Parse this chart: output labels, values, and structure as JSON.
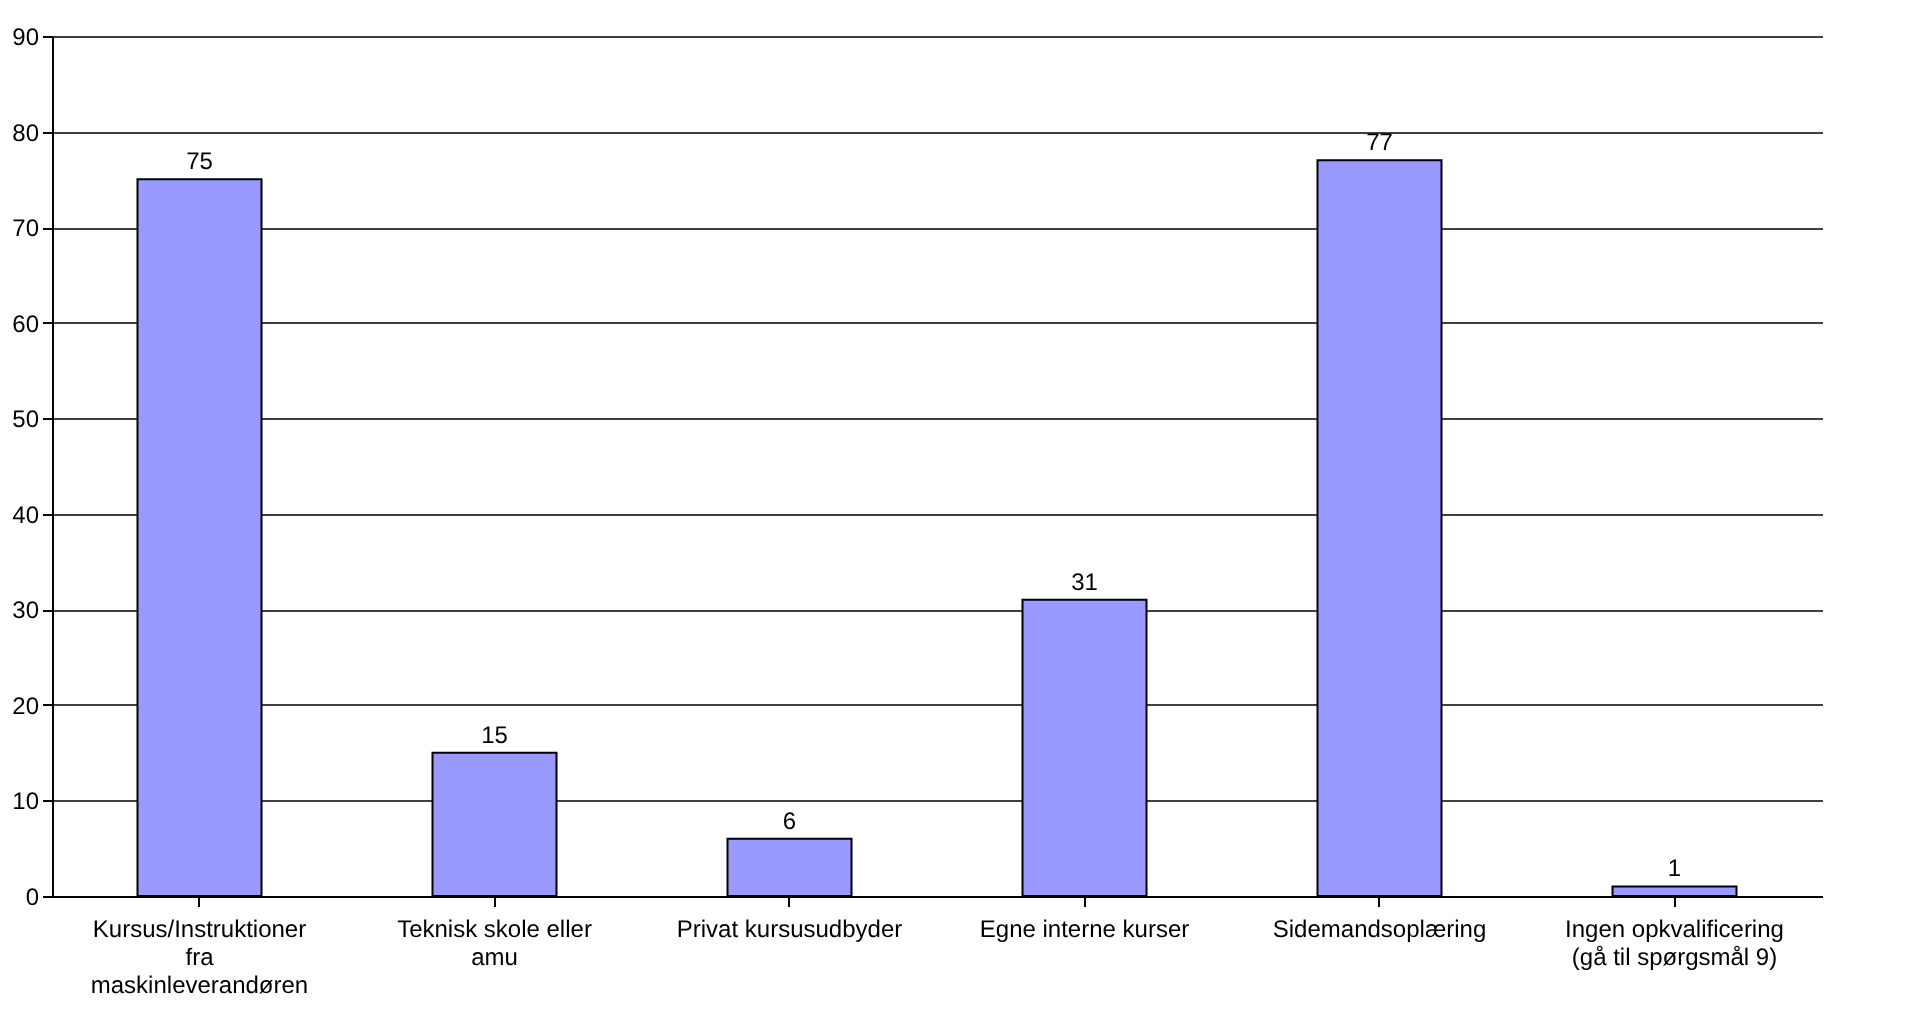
{
  "chart_data": {
    "type": "bar",
    "categories": [
      "Kursus/Instruktioner fra maskinleverandøren",
      "Teknisk skole eller amu",
      "Privat kursusudbyder",
      "Egne interne kurser",
      "Sidemandsoplæring",
      "Ingen opkvalificering (gå til spørgsmål 9)"
    ],
    "values": [
      75,
      15,
      6,
      31,
      77,
      1
    ],
    "color": "#9999ff",
    "ylim": [
      0,
      90
    ],
    "yticks": [
      0,
      10,
      20,
      30,
      40,
      50,
      60,
      70,
      80,
      90
    ],
    "grid": "y",
    "data_labels": true
  }
}
